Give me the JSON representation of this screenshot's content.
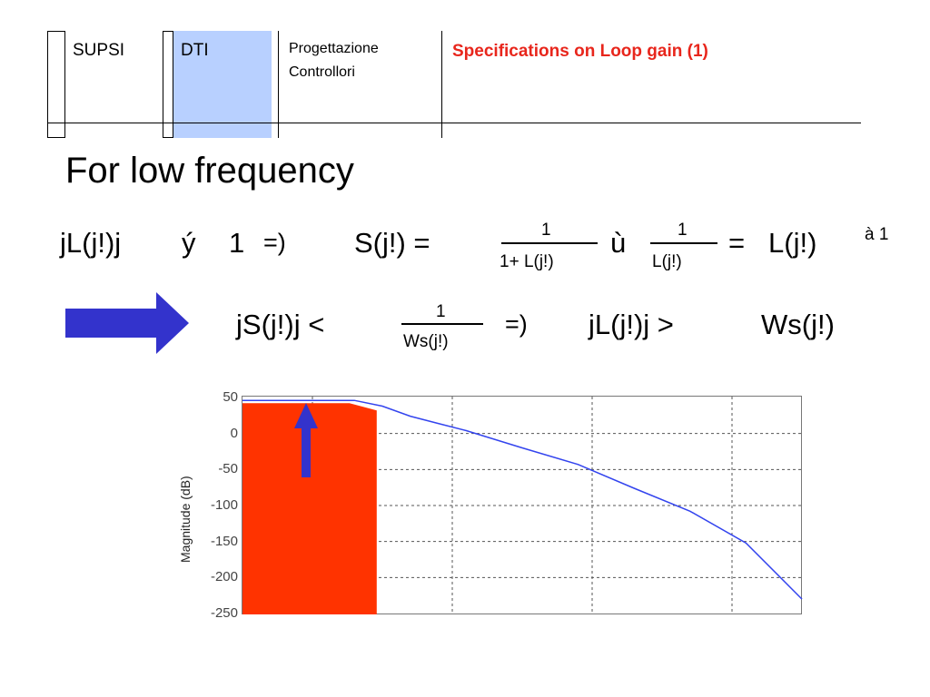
{
  "header": {
    "supsi": "SUPSI",
    "dti": "DTI",
    "course_line1": "Progettazione",
    "course_line2": "Controllori",
    "slide_title": "Specifications on Loop gain (1)",
    "accent_color": "#e8261c",
    "dti_fill": "#b8d0ff"
  },
  "heading": "For low frequency",
  "formula1": {
    "lhs": "jL(j!)j",
    "cond": "ý",
    "one": "1",
    "implies": "=)",
    "s_eq": "S(j!) =",
    "frac1_num": "1",
    "frac1_den": "1+ L(j!)",
    "approx": "ù",
    "frac2_num": "1",
    "frac2_den": "L(j!)",
    "eq2": "=",
    "rhs": "L(j!)",
    "exponent": "à 1"
  },
  "formula2": {
    "lhs": "jS(j!)j <",
    "frac_num": "1",
    "frac_den": "Ws(j!)",
    "implies": "=)",
    "rhs": "jL(j!)j >",
    "rhs2": "Ws(j!)"
  },
  "arrow": {
    "icon": "right-arrow-icon",
    "color": "#3333cc"
  },
  "chart_data": {
    "type": "line",
    "title": "",
    "xlabel": "",
    "ylabel": "Magnitude (dB)",
    "ylim": [
      -250,
      50
    ],
    "yticks": [
      "50",
      "0",
      "-50",
      "-100",
      "-150",
      "-200",
      "-250"
    ],
    "grid": true,
    "series": [
      {
        "color": "#3344ee",
        "x": [
          0,
          0.16,
          0.2,
          0.25,
          0.3,
          0.35,
          0.4,
          0.5,
          0.6,
          0.7,
          0.8,
          0.9,
          1.0
        ],
        "y": [
          46,
          46,
          46,
          38,
          24,
          14,
          4,
          -20,
          -43,
          -76,
          -108,
          -152,
          -230
        ]
      }
    ],
    "shaded_region": {
      "color": "#ff3300",
      "x_end_fraction": 0.24,
      "y_top": 42
    },
    "up_arrow": {
      "color": "#3333cc",
      "icon": "up-arrow-icon"
    }
  }
}
